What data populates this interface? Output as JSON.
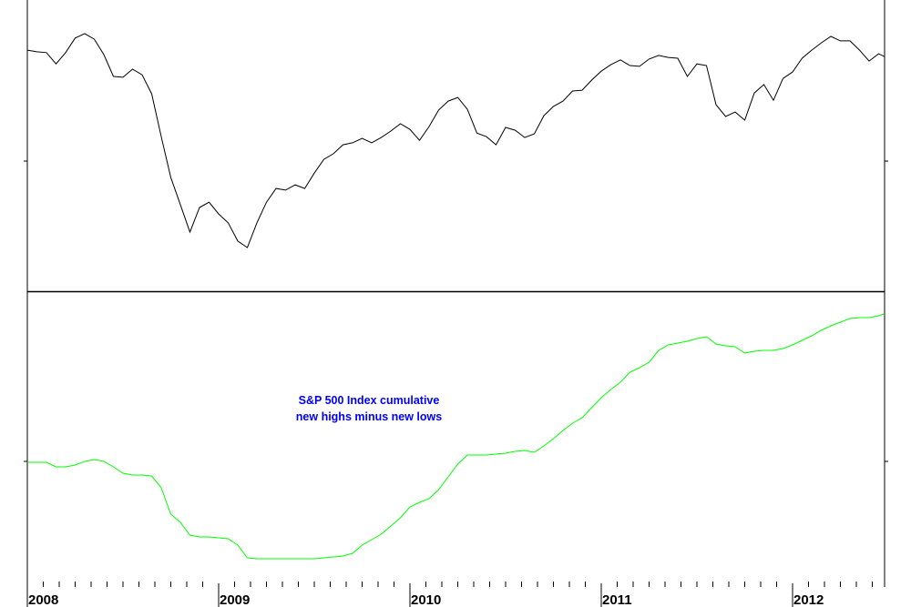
{
  "chart_data": [
    {
      "type": "line",
      "panel": "top",
      "title": "",
      "xlabel": "",
      "ylabel": "",
      "ylim": [
        560,
        1600
      ],
      "xlim": [
        2008.0,
        2012.48
      ],
      "grid": false,
      "color": "#000000",
      "x": [
        2008.0,
        2008.05,
        2008.1,
        2008.15,
        2008.2,
        2008.25,
        2008.3,
        2008.35,
        2008.4,
        2008.45,
        2008.5,
        2008.55,
        2008.6,
        2008.65,
        2008.7,
        2008.75,
        2008.8,
        2008.85,
        2008.9,
        2008.95,
        2009.0,
        2009.05,
        2009.1,
        2009.15,
        2009.2,
        2009.25,
        2009.3,
        2009.35,
        2009.4,
        2009.45,
        2009.5,
        2009.55,
        2009.6,
        2009.65,
        2009.7,
        2009.75,
        2009.8,
        2009.85,
        2009.9,
        2009.95,
        2010.0,
        2010.05,
        2010.1,
        2010.15,
        2010.2,
        2010.25,
        2010.3,
        2010.35,
        2010.4,
        2010.45,
        2010.5,
        2010.55,
        2010.6,
        2010.65,
        2010.7,
        2010.75,
        2010.8,
        2010.85,
        2010.9,
        2010.95,
        2011.0,
        2011.05,
        2011.1,
        2011.15,
        2011.2,
        2011.25,
        2011.3,
        2011.35,
        2011.4,
        2011.45,
        2011.5,
        2011.55,
        2011.6,
        2011.65,
        2011.7,
        2011.75,
        2011.8,
        2011.85,
        2011.9,
        2011.95,
        2012.0,
        2012.05,
        2012.1,
        2012.15,
        2012.2,
        2012.25,
        2012.3,
        2012.35,
        2012.4,
        2012.45,
        2012.48
      ],
      "values": [
        1421,
        1415,
        1412,
        1372,
        1412,
        1464,
        1480,
        1460,
        1405,
        1327,
        1324,
        1353,
        1333,
        1265,
        1112,
        966,
        869,
        771,
        859,
        878,
        836,
        804,
        739,
        716,
        804,
        878,
        927,
        921,
        940,
        927,
        982,
        1031,
        1051,
        1083,
        1090,
        1106,
        1090,
        1109,
        1132,
        1158,
        1138,
        1099,
        1148,
        1207,
        1239,
        1252,
        1210,
        1125,
        1112,
        1083,
        1145,
        1135,
        1109,
        1122,
        1187,
        1220,
        1239,
        1275,
        1278,
        1314,
        1346,
        1369,
        1386,
        1366,
        1363,
        1389,
        1402,
        1395,
        1392,
        1327,
        1372,
        1366,
        1226,
        1184,
        1200,
        1171,
        1268,
        1298,
        1242,
        1320,
        1343,
        1392,
        1421,
        1447,
        1470,
        1454,
        1454,
        1421,
        1382,
        1408,
        1398
      ]
    },
    {
      "type": "line",
      "panel": "bottom",
      "title": "",
      "xlabel": "",
      "ylabel": "",
      "ylim": [
        -1380,
        1870
      ],
      "xlim": [
        2008.0,
        2012.48
      ],
      "grid": false,
      "color": "#00ff00",
      "annotation": [
        "S&P 500 Index cumulative",
        "new highs minus new lows"
      ],
      "x": [
        2008.0,
        2008.05,
        2008.1,
        2008.15,
        2008.2,
        2008.25,
        2008.3,
        2008.35,
        2008.4,
        2008.45,
        2008.5,
        2008.55,
        2008.6,
        2008.65,
        2008.7,
        2008.75,
        2008.8,
        2008.85,
        2008.9,
        2008.95,
        2009.0,
        2009.05,
        2009.1,
        2009.15,
        2009.2,
        2009.25,
        2009.3,
        2009.35,
        2009.4,
        2009.45,
        2009.5,
        2009.55,
        2009.6,
        2009.65,
        2009.7,
        2009.75,
        2009.8,
        2009.85,
        2009.9,
        2009.95,
        2010.0,
        2010.05,
        2010.1,
        2010.15,
        2010.2,
        2010.25,
        2010.3,
        2010.35,
        2010.4,
        2010.45,
        2010.5,
        2010.55,
        2010.6,
        2010.65,
        2010.7,
        2010.75,
        2010.8,
        2010.85,
        2010.9,
        2010.95,
        2011.0,
        2011.05,
        2011.1,
        2011.15,
        2011.2,
        2011.25,
        2011.3,
        2011.35,
        2011.4,
        2011.45,
        2011.5,
        2011.55,
        2011.6,
        2011.65,
        2011.7,
        2011.75,
        2011.8,
        2011.85,
        2011.9,
        2011.95,
        2012.0,
        2012.05,
        2012.1,
        2012.15,
        2012.2,
        2012.25,
        2012.3,
        2012.35,
        2012.4,
        2012.45,
        2012.48
      ],
      "values": [
        -10,
        -10,
        -10,
        -60,
        -60,
        -40,
        0,
        20,
        0,
        -60,
        -130,
        -150,
        -150,
        -160,
        -290,
        -580,
        -670,
        -810,
        -830,
        -830,
        -840,
        -850,
        -920,
        -1060,
        -1070,
        -1070,
        -1070,
        -1070,
        -1070,
        -1070,
        -1070,
        -1060,
        -1050,
        -1040,
        -1010,
        -920,
        -860,
        -800,
        -710,
        -620,
        -500,
        -450,
        -410,
        -310,
        -170,
        -30,
        70,
        70,
        70,
        80,
        90,
        110,
        120,
        100,
        170,
        250,
        340,
        420,
        480,
        590,
        700,
        790,
        870,
        980,
        1030,
        1090,
        1220,
        1280,
        1300,
        1320,
        1350,
        1370,
        1290,
        1270,
        1260,
        1190,
        1210,
        1220,
        1220,
        1240,
        1280,
        1330,
        1380,
        1440,
        1490,
        1530,
        1570,
        1580,
        1580,
        1600,
        1620
      ]
    }
  ],
  "x_axis": {
    "tick_labels": [
      "2008",
      "2009",
      "2010",
      "2011",
      "2012"
    ],
    "tick_values": [
      2008,
      2009,
      2010,
      2011,
      2012
    ],
    "minor_ticks": "monthly"
  }
}
